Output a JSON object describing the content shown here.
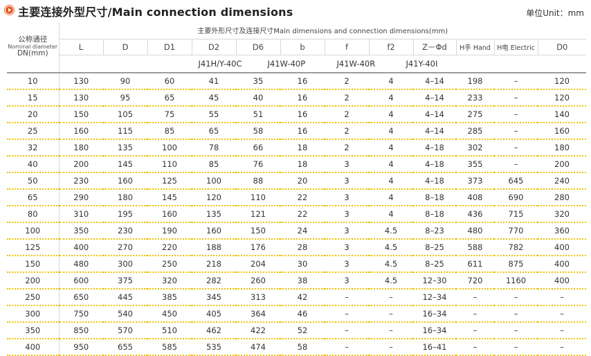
{
  "title": "主要连接外型尺寸/Main connection dimensions",
  "unit": "单位Unit：mm",
  "colors": {
    "accent": "#e35a1f",
    "row_separator": "#f0c200",
    "grid": "#d6d6d6"
  },
  "header": {
    "dn_label_cn": "公称通径",
    "dn_label_en": "Nominal diameter",
    "dn_label_mm": "DN(mm)",
    "group_label": "主要外形尺寸及连接尺寸Main dimensions and connection dimensions(mm)",
    "columns": [
      "L",
      "D",
      "D1",
      "D2",
      "D6",
      "b",
      "f",
      "f2",
      "Z－Φd",
      "H手 Hand",
      "H电 Electric",
      "D0"
    ],
    "models": [
      "J41H/Y-40C",
      "J41W-40P",
      "J41W-40R",
      "J41Y-40I"
    ]
  },
  "rows": [
    [
      "10",
      "130",
      "90",
      "60",
      "41",
      "35",
      "16",
      "2",
      "4",
      "4–14",
      "198",
      "–",
      "120"
    ],
    [
      "15",
      "130",
      "95",
      "65",
      "45",
      "40",
      "16",
      "2",
      "4",
      "4–14",
      "233",
      "–",
      "120"
    ],
    [
      "20",
      "150",
      "105",
      "75",
      "55",
      "51",
      "16",
      "2",
      "4",
      "4–14",
      "275",
      "–",
      "140"
    ],
    [
      "25",
      "160",
      "115",
      "85",
      "65",
      "58",
      "16",
      "2",
      "4",
      "4–14",
      "285",
      "–",
      "160"
    ],
    [
      "32",
      "180",
      "135",
      "100",
      "78",
      "66",
      "18",
      "2",
      "4",
      "4–18",
      "302",
      "–",
      "180"
    ],
    [
      "40",
      "200",
      "145",
      "110",
      "85",
      "76",
      "18",
      "3",
      "4",
      "4–18",
      "355",
      "–",
      "200"
    ],
    [
      "50",
      "230",
      "160",
      "125",
      "100",
      "88",
      "20",
      "3",
      "4",
      "4–18",
      "373",
      "645",
      "240"
    ],
    [
      "65",
      "290",
      "180",
      "145",
      "120",
      "110",
      "22",
      "3",
      "4",
      "8–18",
      "408",
      "690",
      "280"
    ],
    [
      "80",
      "310",
      "195",
      "160",
      "135",
      "121",
      "22",
      "3",
      "4",
      "8–18",
      "436",
      "715",
      "320"
    ],
    [
      "100",
      "350",
      "230",
      "190",
      "160",
      "150",
      "24",
      "3",
      "4.5",
      "8–23",
      "480",
      "770",
      "360"
    ],
    [
      "125",
      "400",
      "270",
      "220",
      "188",
      "176",
      "28",
      "3",
      "4.5",
      "8–25",
      "588",
      "782",
      "400"
    ],
    [
      "150",
      "480",
      "300",
      "250",
      "218",
      "204",
      "30",
      "3",
      "4.5",
      "8–25",
      "611",
      "875",
      "400"
    ],
    [
      "200",
      "600",
      "375",
      "320",
      "282",
      "260",
      "38",
      "3",
      "4.5",
      "12–30",
      "720",
      "1160",
      "400"
    ],
    [
      "250",
      "650",
      "445",
      "385",
      "345",
      "313",
      "42",
      "–",
      "–",
      "12–34",
      "–",
      "–",
      "–"
    ],
    [
      "300",
      "750",
      "540",
      "450",
      "405",
      "364",
      "46",
      "–",
      "–",
      "16–34",
      "–",
      "–",
      "–"
    ],
    [
      "350",
      "850",
      "570",
      "510",
      "462",
      "422",
      "52",
      "–",
      "–",
      "16–34",
      "–",
      "–",
      "–"
    ],
    [
      "400",
      "950",
      "655",
      "585",
      "535",
      "474",
      "58",
      "–",
      "–",
      "16–41",
      "–",
      "–",
      "–"
    ]
  ]
}
